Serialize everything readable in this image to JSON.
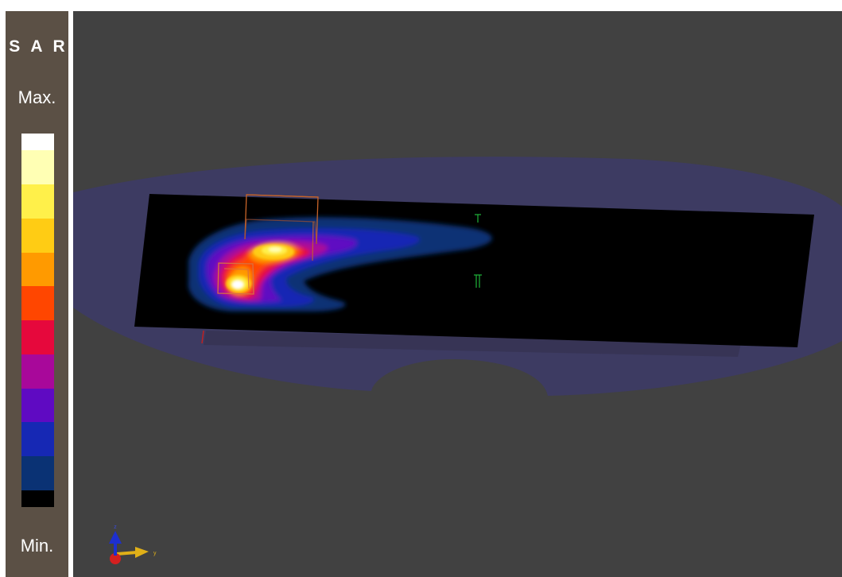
{
  "legend": {
    "quantity_label": "S A R",
    "max_label": "Max.",
    "min_label": "Min.",
    "color_scale": [
      "#ffffff",
      "#ffffb4",
      "#fff04a",
      "#ffcc14",
      "#ff9a00",
      "#ff4600",
      "#e6083c",
      "#a8089a",
      "#5f0ac2",
      "#1628b4",
      "#0a3274",
      "#000000"
    ]
  },
  "viewport": {
    "background_color": "#414141",
    "phantom_color": "#3d3b62",
    "measurement_plane_color": "#000000"
  },
  "axis_gizmo": {
    "z_label": "z",
    "y_label": "y",
    "z_color": "#1d2fcf",
    "y_color": "#e0b018",
    "x_color": "#d42020"
  }
}
